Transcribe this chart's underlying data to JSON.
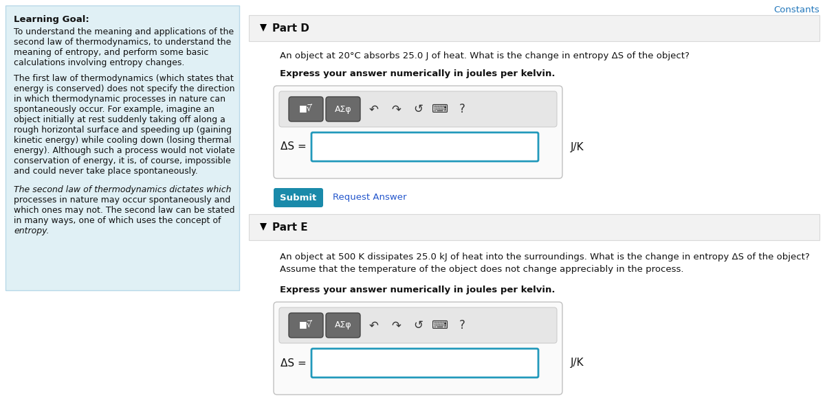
{
  "bg_color": "#ffffff",
  "left_panel_bg": "#e0f0f5",
  "left_panel_border": "#b8d8e8",
  "header_bg": "#f2f2f2",
  "header_border": "#d8d8d8",
  "input_box_border": "#2299bb",
  "toolbar_bg": "#e6e6e6",
  "toolbar_btn_bg": "#6a6a6a",
  "submit_btn_bg": "#1a8aaa",
  "constants_color": "#2277bb",
  "text_color": "#111111",
  "link_color": "#2255cc",
  "divider_color": "#cccccc",
  "learning_goal_title": "Learning Goal:",
  "learning_goal_text1": "To understand the meaning and applications of the",
  "learning_goal_text2": "second law of thermodynamics, to understand the",
  "learning_goal_text3": "meaning of entropy, and perform some basic",
  "learning_goal_text4": "calculations involving entropy changes.",
  "para1_lines": [
    "The first law of thermodynamics (which states that",
    "energy is conserved) does not specify the direction",
    "in which thermodynamic processes in nature can",
    "spontaneously occur. For example, imagine an",
    "object initially at rest suddenly taking off along a",
    "rough horizontal surface and speeding up (gaining",
    "kinetic energy) while cooling down (losing thermal",
    "energy). Although such a process would not violate",
    "conservation of energy, it is, of course, impossible",
    "and could never take place spontaneously."
  ],
  "para1_italic_word": "direction",
  "para1_italic_word2": "spontaneously",
  "para1_italic_word3": "spontaneously.",
  "para2_lines": [
    "The second law of thermodynamics dictates which",
    "processes in nature may occur spontaneously and",
    "which ones may not. The second law can be stated",
    "in many ways, one of which uses the concept of",
    "entropy."
  ],
  "constants_text": "Constants",
  "part_d_title": "Part D",
  "part_d_question": "An object at 20°C absorbs 25.0 J of heat. What is the change in entropy ΔS of the object?",
  "part_d_bold": "Express your answer numerically in joules per kelvin.",
  "part_d_delta_s": "ΔS =",
  "part_d_unit": "J/K",
  "part_e_title": "Part E",
  "part_e_question1": "An object at 500 K dissipates 25.0 kJ of heat into the surroundings. What is the change in entropy ΔS of the object?",
  "part_e_question2": "Assume that the temperature of the object does not change appreciably in the process.",
  "part_e_bold": "Express your answer numerically in joules per kelvin.",
  "part_e_delta_s": "ΔS =",
  "part_e_unit": "J/K",
  "submit_text": "Submit",
  "request_answer_text": "Request Answer"
}
